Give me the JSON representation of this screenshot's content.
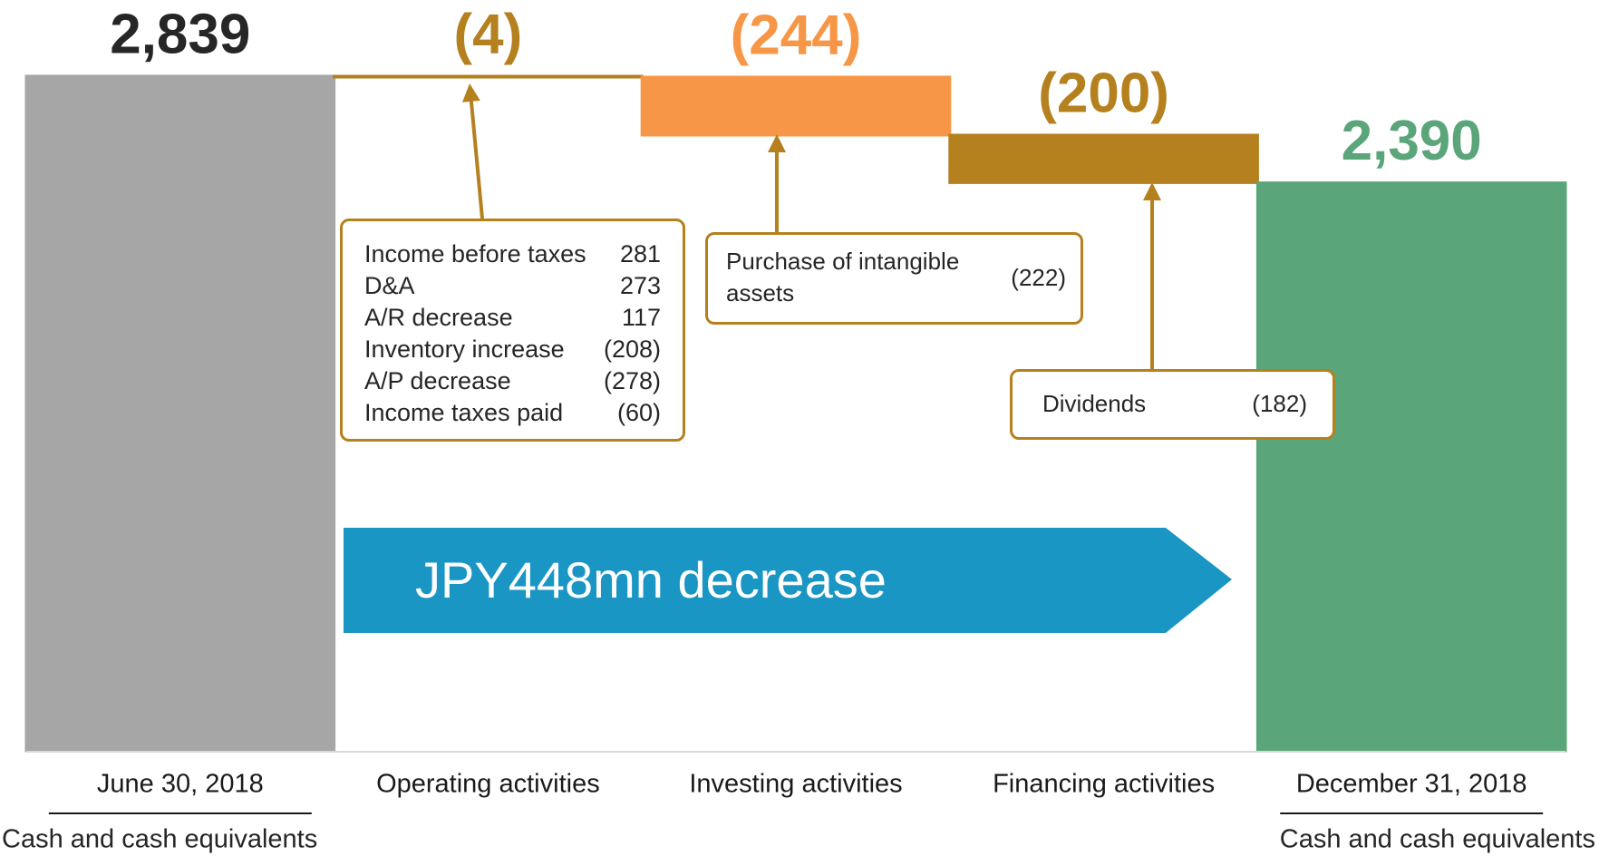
{
  "chart_data": {
    "type": "waterfall",
    "categories": [
      "June 30, 2018",
      "Operating activities",
      "Investing activities",
      "Financing activities",
      "December 31, 2018"
    ],
    "category_notes": [
      "Cash and cash equivalents",
      null,
      null,
      null,
      "Cash and cash equivalents"
    ],
    "measure": [
      "absolute",
      "relative",
      "relative",
      "relative",
      "absolute"
    ],
    "values": [
      2839,
      -4,
      -244,
      -200,
      2390
    ],
    "value_labels": [
      "2,839",
      "(4)",
      "(244)",
      "(200)",
      "2,390"
    ],
    "colors": [
      "#a6a6a6",
      "#b5801e",
      "#f79646",
      "#b5801e",
      "#5ba57a"
    ],
    "label_colors": [
      "#262626",
      "#b5801e",
      "#f79646",
      "#b5801e",
      "#5ba57a"
    ],
    "callouts": [
      {
        "items": [
          {
            "label": "Income before taxes",
            "value": "281"
          },
          {
            "label": "D&A",
            "value": "273"
          },
          {
            "label": "A/R decrease",
            "value": "117"
          },
          {
            "label": "Inventory increase",
            "value": "(208)"
          },
          {
            "label": "A/P decrease",
            "value": "(278)"
          },
          {
            "label": "Income taxes paid",
            "value": "(60)"
          }
        ]
      },
      {
        "items": [
          {
            "label": "Purchase of intangible assets",
            "value": "(222)"
          }
        ]
      },
      {
        "items": [
          {
            "label": "Dividends",
            "value": "(182)"
          }
        ]
      }
    ],
    "banner": "JPY448mn decrease"
  }
}
